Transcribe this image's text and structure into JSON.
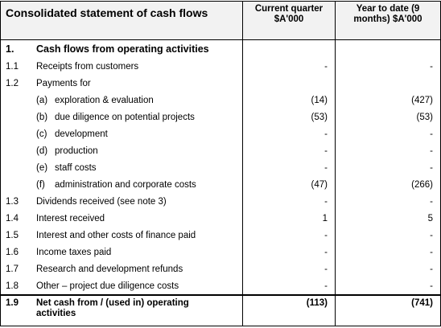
{
  "header": {
    "title": "Consolidated statement of cash flows",
    "columns": [
      "Current quarter $A'000",
      "Year to date (9 months) $A'000"
    ]
  },
  "rows": [
    {
      "num": "1.",
      "label": "Cash flows from operating activities"
    },
    {
      "num": "1.1",
      "label": "Receipts from customers",
      "current": "-",
      "ytd": "-"
    },
    {
      "num": "1.2",
      "label": "Payments for"
    },
    {
      "sub": "(a)",
      "label": "exploration & evaluation",
      "current": "(14)",
      "ytd": "(427)"
    },
    {
      "sub": "(b)",
      "label": "due diligence on potential projects",
      "current": "(53)",
      "ytd": "(53)"
    },
    {
      "sub": "(c)",
      "label": "development",
      "current": "-",
      "ytd": "-"
    },
    {
      "sub": "(d)",
      "label": "production",
      "current": "-",
      "ytd": "-"
    },
    {
      "sub": "(e)",
      "label": "staff costs",
      "current": "-",
      "ytd": "-"
    },
    {
      "sub": "(f)",
      "label": "administration and corporate costs",
      "current": "(47)",
      "ytd": "(266)"
    },
    {
      "num": "1.3",
      "label": "Dividends received (see note 3)",
      "current": "-",
      "ytd": "-"
    },
    {
      "num": "1.4",
      "label": "Interest received",
      "current": "1",
      "ytd": "5"
    },
    {
      "num": "1.5",
      "label": "Interest and other costs of finance paid",
      "current": "-",
      "ytd": "-"
    },
    {
      "num": "1.6",
      "label": "Income taxes paid",
      "current": "-",
      "ytd": "-"
    },
    {
      "num": "1.7",
      "label": "Research and development refunds",
      "current": "-",
      "ytd": "-"
    },
    {
      "num": "1.8",
      "label": "Other – project due diligence costs",
      "current": "-",
      "ytd": "-"
    },
    {
      "num": "1.9",
      "label": "Net cash from / (used in) operating activities",
      "current": "(113)",
      "ytd": "(741)"
    }
  ]
}
